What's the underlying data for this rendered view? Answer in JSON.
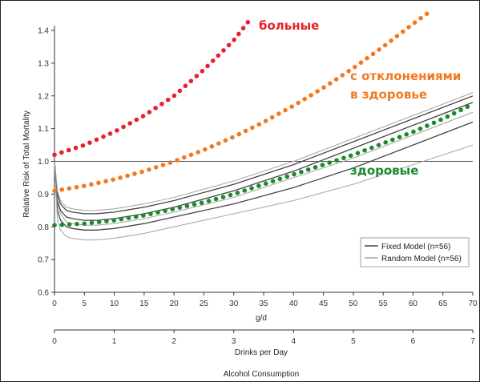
{
  "chart_data": {
    "type": "line",
    "xlabel": "g/d",
    "xlabel2": "Drinks per Day",
    "xlabel_main": "Alcohol Consumption",
    "ylabel": "Relative Risk of Total Mortality",
    "xlim": [
      0,
      70
    ],
    "ylim": [
      0.6,
      1.4
    ],
    "xticks": [
      "0",
      "5",
      "10",
      "15",
      "20",
      "25",
      "30",
      "35",
      "40",
      "45",
      "50",
      "55",
      "60",
      "65",
      "70"
    ],
    "x2ticks": [
      "0",
      "1",
      "2",
      "3",
      "4",
      "5",
      "6",
      "7"
    ],
    "yticks": [
      "0.6",
      "0.7",
      "0.8",
      "0.9",
      "1.0",
      "1.1",
      "1.2",
      "1.3",
      "1.4"
    ],
    "reference_line": 1.0,
    "legend": {
      "placement": "bottom-right",
      "entries": [
        {
          "label": "Fixed Model (n=56)",
          "color": "#444444"
        },
        {
          "label": "Random Model (n=56)",
          "color": "#aaaaaa"
        }
      ]
    },
    "series": [
      {
        "model": "fixed",
        "color": "#444444",
        "x": [
          0,
          0.5,
          1,
          2,
          3,
          5,
          7,
          10,
          15,
          20,
          30,
          40,
          50,
          60,
          70
        ],
        "y": [
          1.0,
          0.88,
          0.85,
          0.83,
          0.825,
          0.82,
          0.82,
          0.825,
          0.84,
          0.86,
          0.91,
          0.97,
          1.04,
          1.11,
          1.18
        ]
      },
      {
        "model": "fixed",
        "color": "#444444",
        "x": [
          0,
          0.5,
          1,
          2,
          3,
          5,
          7,
          10,
          15,
          20,
          30,
          40,
          50,
          60,
          70
        ],
        "y": [
          1.0,
          0.9,
          0.87,
          0.85,
          0.845,
          0.84,
          0.84,
          0.845,
          0.86,
          0.88,
          0.93,
          0.99,
          1.06,
          1.13,
          1.2
        ]
      },
      {
        "model": "random",
        "color": "#aaaaaa",
        "x": [
          0,
          0.5,
          1,
          2,
          3,
          5,
          7,
          10,
          15,
          20,
          30,
          40,
          50,
          60,
          70
        ],
        "y": [
          1.0,
          0.91,
          0.88,
          0.86,
          0.855,
          0.85,
          0.85,
          0.855,
          0.87,
          0.89,
          0.94,
          1.0,
          1.07,
          1.14,
          1.21
        ]
      },
      {
        "model": "random",
        "color": "#aaaaaa",
        "x": [
          0,
          0.5,
          1,
          2,
          3,
          5,
          7,
          10,
          15,
          20,
          30,
          40,
          50,
          60,
          70
        ],
        "y": [
          1.0,
          0.87,
          0.84,
          0.815,
          0.81,
          0.805,
          0.805,
          0.81,
          0.825,
          0.845,
          0.89,
          0.95,
          1.01,
          1.08,
          1.15
        ]
      },
      {
        "model": "fixed",
        "color": "#444444",
        "x": [
          0,
          0.5,
          1,
          2,
          3,
          5,
          7,
          10,
          15,
          20,
          30,
          40,
          50,
          60,
          70
        ],
        "y": [
          1.0,
          0.85,
          0.82,
          0.8,
          0.795,
          0.79,
          0.79,
          0.795,
          0.81,
          0.83,
          0.87,
          0.92,
          0.98,
          1.05,
          1.12
        ]
      },
      {
        "model": "random",
        "color": "#aaaaaa",
        "x": [
          0,
          0.5,
          1,
          2,
          3,
          5,
          7,
          10,
          15,
          20,
          30,
          40,
          50,
          60,
          70
        ],
        "y": [
          1.0,
          0.82,
          0.79,
          0.77,
          0.765,
          0.76,
          0.76,
          0.765,
          0.78,
          0.8,
          0.84,
          0.88,
          0.93,
          0.99,
          1.05
        ]
      }
    ],
    "dotted_series": [
      {
        "label": "больные",
        "color": "#e8202a",
        "x": [
          0,
          5,
          10,
          15,
          20,
          25,
          30,
          33
        ],
        "y": [
          1.02,
          1.05,
          1.09,
          1.14,
          1.2,
          1.28,
          1.37,
          1.44
        ]
      },
      {
        "label": "с отклонениями\nв здоровье",
        "color": "#f07a22",
        "x": [
          0,
          5,
          10,
          15,
          20,
          25,
          30,
          35,
          40,
          45,
          50,
          55,
          60,
          63
        ],
        "y": [
          0.91,
          0.925,
          0.945,
          0.97,
          1.0,
          1.035,
          1.075,
          1.12,
          1.17,
          1.225,
          1.285,
          1.35,
          1.42,
          1.46
        ]
      },
      {
        "label": "здоровые",
        "color": "#1a8a2a",
        "x": [
          0,
          5,
          10,
          15,
          20,
          25,
          30,
          35,
          40,
          45,
          50,
          55,
          60,
          65,
          70
        ],
        "y": [
          0.805,
          0.81,
          0.82,
          0.835,
          0.855,
          0.875,
          0.9,
          0.93,
          0.96,
          0.99,
          1.02,
          1.055,
          1.09,
          1.13,
          1.175
        ]
      }
    ]
  },
  "annotations": {
    "sick": "больные",
    "deviations_line1": "с отклонениями",
    "deviations_line2": "в здоровье",
    "healthy": "здоровые"
  }
}
